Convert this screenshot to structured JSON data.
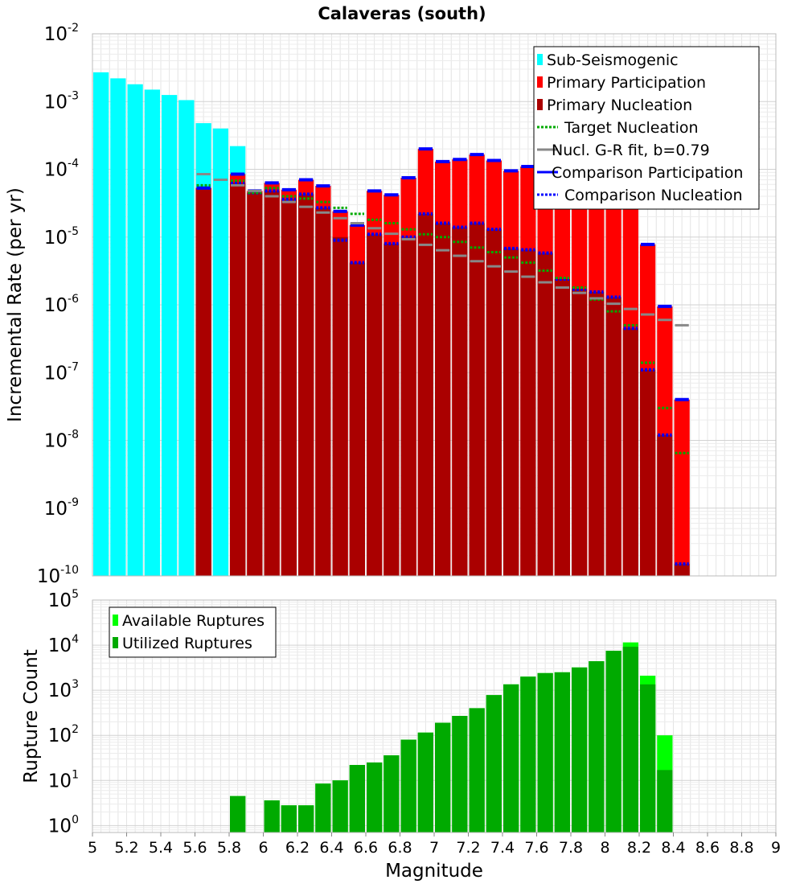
{
  "chart_data": [
    {
      "type": "bar",
      "title": "Calaveras (south)",
      "ylabel": "Incremental Rate (per yr)",
      "xlabel": "",
      "xlim": [
        5,
        9
      ],
      "ylim": [
        1e-10,
        0.01
      ],
      "yscale": "log",
      "grid": true,
      "legend_position": "top-right",
      "bin_width": 0.1,
      "yticks": [
        {
          "base": "10",
          "exp": "-10",
          "v": 1e-10
        },
        {
          "base": "10",
          "exp": "-9",
          "v": 1e-09
        },
        {
          "base": "10",
          "exp": "-8",
          "v": 1e-08
        },
        {
          "base": "10",
          "exp": "-7",
          "v": 1e-07
        },
        {
          "base": "10",
          "exp": "-6",
          "v": 1e-06
        },
        {
          "base": "10",
          "exp": "-5",
          "v": 1e-05
        },
        {
          "base": "10",
          "exp": "-4",
          "v": 0.0001
        },
        {
          "base": "10",
          "exp": "-3",
          "v": 0.001
        },
        {
          "base": "10",
          "exp": "-2",
          "v": 0.01
        }
      ],
      "legend": [
        {
          "label": "Sub-Seismogenic",
          "color": "#00ffff",
          "style": "box"
        },
        {
          "label": "Primary Participation",
          "color": "#ff0000",
          "style": "box"
        },
        {
          "label": "Primary Nucleation",
          "color": "#aa0000",
          "style": "box"
        },
        {
          "label": "Target Nucleation",
          "color": "#00aa00",
          "style": "dotted"
        },
        {
          "label": "Nucl. G-R fit, b=0.79",
          "color": "#888888",
          "style": "solid"
        },
        {
          "label": "Comparison Participation",
          "color": "#0000ff",
          "style": "solid"
        },
        {
          "label": "Comparison Nucleation",
          "color": "#0000ff",
          "style": "dotted"
        }
      ],
      "series": [
        {
          "name": "Sub-Seismogenic",
          "color": "#00ffff",
          "x": [
            5.05,
            5.15,
            5.25,
            5.35,
            5.45,
            5.55,
            5.65,
            5.75,
            5.85
          ],
          "values": [
            0.0027,
            0.0022,
            0.0018,
            0.0015,
            0.00125,
            0.00105,
            0.00048,
            0.0004,
            0.00022
          ]
        },
        {
          "name": "Primary Participation",
          "color": "#ff0000",
          "x": [
            5.65,
            5.85,
            5.95,
            6.05,
            6.15,
            6.25,
            6.35,
            6.45,
            6.55,
            6.65,
            6.75,
            6.85,
            6.95,
            7.05,
            7.15,
            7.25,
            7.35,
            7.45,
            7.55,
            7.65,
            7.75,
            7.85,
            7.95,
            8.05,
            8.15,
            8.25,
            8.35,
            8.45
          ],
          "values": [
            5.3e-05,
            8.5e-05,
            4.8e-05,
            6.3e-05,
            5e-05,
            7e-05,
            5.7e-05,
            2.4e-05,
            1.5e-05,
            4.8e-05,
            4.2e-05,
            7.5e-05,
            0.0002,
            0.00013,
            0.00014,
            0.000165,
            0.000135,
            9.5e-05,
            0.00011,
            8.8e-05,
            5.5e-05,
            4.5e-05,
            3.8e-05,
            3.2e-05,
            2.8e-05,
            7.8e-06,
            9.5e-07,
            4e-08
          ]
        },
        {
          "name": "Primary Nucleation",
          "color": "#aa0000",
          "x": [
            5.65,
            5.85,
            5.95,
            6.05,
            6.15,
            6.25,
            6.35,
            6.45,
            6.55,
            6.65,
            6.75,
            6.85,
            6.95,
            7.05,
            7.15,
            7.25,
            7.35,
            7.45,
            7.55,
            7.65,
            7.75,
            7.85,
            7.95,
            8.05,
            8.15,
            8.25,
            8.35,
            8.45
          ],
          "values": [
            5.3e-05,
            6.3e-05,
            4.5e-05,
            4.8e-05,
            3.6e-05,
            4.3e-05,
            2.7e-05,
            1e-05,
            4.2e-06,
            1.1e-05,
            8e-06,
            1e-05,
            2.2e-05,
            1.6e-05,
            1.4e-05,
            1.6e-05,
            1.3e-05,
            6.8e-06,
            6.5e-06,
            5.8e-06,
            2.4e-06,
            1.7e-06,
            1.55e-06,
            1.3e-06,
            4.5e-07,
            1.1e-07,
            1.2e-08,
            1.5e-10
          ]
        },
        {
          "name": "Comparison Participation",
          "color": "#0000ff",
          "x": [
            5.65,
            5.85,
            5.95,
            6.05,
            6.15,
            6.25,
            6.35,
            6.45,
            6.55,
            6.65,
            6.75,
            6.85,
            6.95,
            7.05,
            7.15,
            7.25,
            7.35,
            7.45,
            7.55,
            7.65,
            7.75,
            7.85,
            7.95,
            8.05,
            8.15,
            8.25,
            8.35,
            8.45
          ],
          "values": [
            5.3e-05,
            8.5e-05,
            4.8e-05,
            6.3e-05,
            5e-05,
            7e-05,
            5.7e-05,
            2.4e-05,
            1.5e-05,
            4.8e-05,
            4.2e-05,
            7.5e-05,
            0.0002,
            0.00013,
            0.00014,
            0.000165,
            0.000135,
            9.5e-05,
            0.00011,
            8.8e-05,
            5.5e-05,
            4.5e-05,
            3.8e-05,
            3.2e-05,
            2.8e-05,
            7.8e-06,
            9.5e-07,
            4e-08
          ]
        },
        {
          "name": "Comparison Nucleation",
          "color": "#0000ff",
          "x": [
            5.65,
            5.85,
            5.95,
            6.05,
            6.15,
            6.25,
            6.35,
            6.45,
            6.55,
            6.65,
            6.75,
            6.85,
            6.95,
            7.05,
            7.15,
            7.25,
            7.35,
            7.45,
            7.55,
            7.65,
            7.75,
            7.85,
            7.95,
            8.05,
            8.15,
            8.25,
            8.35,
            8.45
          ],
          "values": [
            5.3e-05,
            6.3e-05,
            4.5e-05,
            4.8e-05,
            3.6e-05,
            4.3e-05,
            2.7e-05,
            9e-06,
            4.2e-06,
            1.1e-05,
            8e-06,
            1e-05,
            2.2e-05,
            1.6e-05,
            1.4e-05,
            1.6e-05,
            1.3e-05,
            6.8e-06,
            6.5e-06,
            5.8e-06,
            2.4e-06,
            1.7e-06,
            1.55e-06,
            1.3e-06,
            4.5e-07,
            1.1e-07,
            1.2e-08,
            1.5e-10
          ]
        },
        {
          "name": "Target Nucleation",
          "color": "#00aa00",
          "x": [
            5.65,
            5.85,
            5.95,
            6.05,
            6.15,
            6.25,
            6.35,
            6.45,
            6.55,
            6.65,
            6.75,
            6.85,
            6.95,
            7.05,
            7.15,
            7.25,
            7.35,
            7.45,
            7.55,
            7.65,
            7.75,
            7.85,
            7.95,
            8.05,
            8.15,
            8.25,
            8.35,
            8.45
          ],
          "values": [
            5.8e-05,
            6.8e-05,
            4.5e-05,
            5.3e-05,
            4e-05,
            3.7e-05,
            3.3e-05,
            2.7e-05,
            2.2e-05,
            1.8e-05,
            1.6e-05,
            1.3e-05,
            1.1e-05,
            1e-05,
            8.5e-06,
            7e-06,
            6e-06,
            5e-06,
            4.2e-06,
            3.2e-06,
            2.5e-06,
            1.8e-06,
            1.2e-06,
            8e-07,
            5e-07,
            1.4e-07,
            3e-08,
            6.5e-09
          ]
        },
        {
          "name": "Nucl. G-R fit, b=0.79",
          "color": "#888888",
          "x": [
            5.65,
            5.75,
            5.85,
            5.95,
            6.05,
            6.15,
            6.25,
            6.35,
            6.45,
            6.55,
            6.65,
            6.75,
            6.85,
            6.95,
            7.05,
            7.15,
            7.25,
            7.35,
            7.45,
            7.55,
            7.65,
            7.75,
            7.85,
            7.95,
            8.05,
            8.15,
            8.25,
            8.35,
            8.45
          ],
          "values": [
            8.5e-05,
            7e-05,
            5.8e-05,
            4.8e-05,
            4e-05,
            3.3e-05,
            2.8e-05,
            2.3e-05,
            1.9e-05,
            1.6e-05,
            1.35e-05,
            1.12e-05,
            9.3e-06,
            7.7e-06,
            6.4e-06,
            5.3e-06,
            4.4e-06,
            3.7e-06,
            3.1e-06,
            2.6e-06,
            2.15e-06,
            1.8e-06,
            1.5e-06,
            1.25e-06,
            1.04e-06,
            8.7e-07,
            7.2e-07,
            6e-07,
            5e-07
          ]
        }
      ]
    },
    {
      "type": "bar",
      "title": "",
      "ylabel": "Rupture Count",
      "xlabel": "Magnitude",
      "xlim": [
        5,
        9
      ],
      "ylim": [
        0.7,
        100000
      ],
      "yscale": "log",
      "grid": true,
      "legend_position": "top-left",
      "bin_width": 0.1,
      "xticks": [
        "5",
        "5.2",
        "5.4",
        "5.6",
        "5.8",
        "6",
        "6.2",
        "6.4",
        "6.6",
        "6.8",
        "7",
        "7.2",
        "7.4",
        "7.6",
        "7.8",
        "8",
        "8.2",
        "8.4",
        "8.6",
        "8.8",
        "9"
      ],
      "yticks": [
        {
          "base": "10",
          "exp": "0",
          "v": 1
        },
        {
          "base": "10",
          "exp": "1",
          "v": 10
        },
        {
          "base": "10",
          "exp": "2",
          "v": 100
        },
        {
          "base": "10",
          "exp": "3",
          "v": 1000
        },
        {
          "base": "10",
          "exp": "4",
          "v": 10000
        },
        {
          "base": "10",
          "exp": "5",
          "v": 100000
        }
      ],
      "legend": [
        {
          "label": "Available Ruptures",
          "color": "#00ff00",
          "style": "box"
        },
        {
          "label": "Utilized Ruptures",
          "color": "#00aa00",
          "style": "box"
        }
      ],
      "series": [
        {
          "name": "Available Ruptures",
          "color": "#00ff00",
          "x": [
            5.85,
            6.05,
            6.15,
            6.25,
            6.35,
            6.45,
            6.55,
            6.65,
            6.75,
            6.85,
            6.95,
            7.05,
            7.15,
            7.25,
            7.35,
            7.45,
            7.55,
            7.65,
            7.75,
            7.85,
            7.95,
            8.05,
            8.15,
            8.25,
            8.35
          ],
          "values": [
            4.5,
            3.6,
            2.8,
            2.8,
            8.5,
            10,
            22,
            25,
            36,
            80,
            115,
            190,
            270,
            400,
            780,
            1350,
            2000,
            2400,
            2500,
            3200,
            4400,
            7500,
            11500,
            2100,
            100
          ]
        },
        {
          "name": "Utilized Ruptures",
          "color": "#00aa00",
          "x": [
            5.85,
            6.05,
            6.15,
            6.25,
            6.35,
            6.45,
            6.55,
            6.65,
            6.75,
            6.85,
            6.95,
            7.05,
            7.15,
            7.25,
            7.35,
            7.45,
            7.55,
            7.65,
            7.75,
            7.85,
            7.95,
            8.05,
            8.15,
            8.25,
            8.35
          ],
          "values": [
            4.5,
            3.6,
            2.8,
            2.8,
            8.5,
            10,
            22,
            25,
            36,
            80,
            115,
            190,
            270,
            400,
            780,
            1350,
            2000,
            2400,
            2500,
            3200,
            4400,
            7500,
            9200,
            1350,
            17
          ]
        }
      ]
    }
  ]
}
